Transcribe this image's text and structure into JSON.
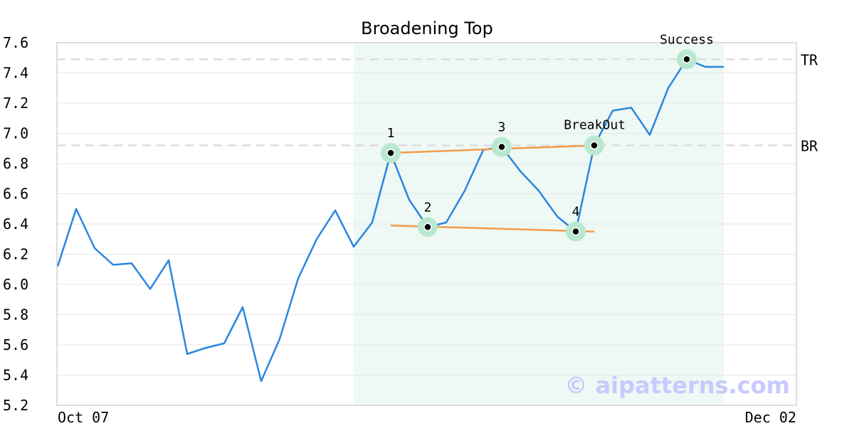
{
  "chart_data": {
    "type": "line",
    "title": "Broadening Top",
    "xlabel": "",
    "ylabel": "",
    "x_tick_labels": [
      "Oct 07",
      "Dec 02"
    ],
    "y_ticks": [
      5.2,
      5.4,
      5.6,
      5.8,
      6.0,
      6.2,
      6.4,
      6.6,
      6.8,
      7.0,
      7.2,
      7.4,
      7.6
    ],
    "y_tick_labels": [
      "5.2",
      "5.4",
      "5.6",
      "5.8",
      "6.0",
      "6.2",
      "6.4",
      "6.6",
      "6.8",
      "7.0",
      "7.2",
      "7.4",
      "7.6"
    ],
    "ylim": [
      5.2,
      7.6
    ],
    "grid": "horizontal",
    "series": [
      {
        "values": [
          6.12,
          6.5,
          6.24,
          6.13,
          6.14,
          5.97,
          6.16,
          5.54,
          5.58,
          5.61,
          5.85,
          5.36,
          5.64,
          6.04,
          6.3,
          6.49,
          6.25,
          6.41,
          6.87,
          6.56,
          6.38,
          6.41,
          6.62,
          6.89,
          6.91,
          6.75,
          6.62,
          6.45,
          6.35,
          6.92,
          7.15,
          7.17,
          6.99,
          7.3,
          7.49,
          7.44,
          7.44
        ]
      }
    ],
    "color_line": "#2b86e0",
    "color_trend": "#f29b4a",
    "color_marker": "#b9e8d0",
    "color_highlight": "#eef8f4",
    "highlight_range": [
      16,
      36
    ],
    "reference_lines": [
      {
        "label": "TR",
        "value": 7.49
      },
      {
        "label": "BR",
        "value": 6.92
      }
    ],
    "trendlines": [
      {
        "from": [
          18,
          6.87
        ],
        "to": [
          29,
          6.92
        ]
      },
      {
        "from": [
          18,
          6.39
        ],
        "to": [
          29,
          6.35
        ]
      }
    ],
    "points": [
      {
        "label": "1",
        "index": 18,
        "value": 6.87,
        "label_pos": "above"
      },
      {
        "label": "2",
        "index": 20,
        "value": 6.38,
        "label_pos": "above"
      },
      {
        "label": "3",
        "index": 24,
        "value": 6.91,
        "label_pos": "above"
      },
      {
        "label": "4",
        "index": 28,
        "value": 6.35,
        "label_pos": "above"
      },
      {
        "label": "BreakOut",
        "index": 29,
        "value": 6.92,
        "label_pos": "above-left"
      },
      {
        "label": "Success",
        "index": 34,
        "value": 7.49,
        "label_pos": "above"
      }
    ],
    "watermark": "© aipatterns.com"
  }
}
